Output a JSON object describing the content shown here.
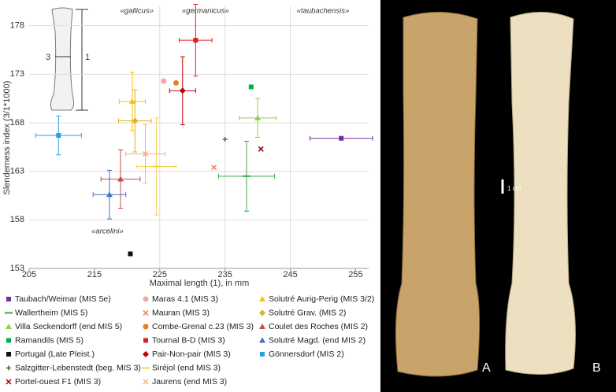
{
  "chart_data": {
    "type": "scatter",
    "xlabel": "Maximal length (1), in mm",
    "ylabel": "Slenderness  index (3/1*1000)",
    "xlim": [
      205,
      257
    ],
    "xticks": [
      205,
      215,
      225,
      235,
      245,
      255
    ],
    "ylim": [
      153,
      180
    ],
    "yticks": [
      153,
      158,
      163,
      168,
      173,
      178
    ],
    "grid": "y",
    "annotations": [
      {
        "text": "«gallicus»",
        "x": 221.5,
        "y": 179.5
      },
      {
        "text": "«germanicus»",
        "x": 232,
        "y": 179.5
      },
      {
        "text": "«taubachensis»",
        "x": 250,
        "y": 179.5
      },
      {
        "text": "«arcelini»",
        "x": 217,
        "y": 156.8
      }
    ],
    "region_lines": [
      225,
      235,
      245
    ],
    "inset_labels": [
      "3",
      "1"
    ],
    "series": [
      {
        "name": "Taubach/Weimar (MIS 5e)",
        "color": "#7030a0",
        "marker": "square",
        "x": [
          252.8
        ],
        "values": [
          166.4
        ],
        "xerr": [
          4.8
        ],
        "yerr": [
          null
        ]
      },
      {
        "name": "Wallertheim (MIS 5)",
        "color": "#3aa845",
        "marker": "dash",
        "x": [
          238.3
        ],
        "values": [
          162.5
        ],
        "xerr": [
          4.3
        ],
        "yerr": [
          3.6
        ]
      },
      {
        "name": "Villa Seckendorff (end MIS 5)",
        "color": "#92d050",
        "marker": "triangle",
        "x": [
          240
        ],
        "values": [
          168.5
        ],
        "xerr": [
          2.8
        ],
        "yerr": [
          2
        ]
      },
      {
        "name": "Ramandils (MIS 5)",
        "color": "#00b050",
        "marker": "square",
        "x": [
          239
        ],
        "values": [
          171.7
        ],
        "xerr": [
          null
        ],
        "yerr": [
          null
        ]
      },
      {
        "name": "Portugal (Late Pleist.)",
        "color": "#111111",
        "marker": "square",
        "x": [
          220.5
        ],
        "values": [
          154.5
        ],
        "xerr": [
          null
        ],
        "yerr": [
          null
        ]
      },
      {
        "name": "Salzgitter-Lebenstedt (beg. MIS 3)",
        "color": "#4f6228",
        "marker": "plus",
        "x": [
          235
        ],
        "values": [
          166.3
        ],
        "xerr": [
          null
        ],
        "yerr": [
          null
        ]
      },
      {
        "name": "Portel-ouest F1 (MIS 3)",
        "color": "#a00000",
        "marker": "cross",
        "x": [
          240.5
        ],
        "values": [
          165.3
        ],
        "xerr": [
          null
        ],
        "yerr": [
          null
        ]
      },
      {
        "name": "Maras 4.1 (MIS 3)",
        "color": "#f4a6a6",
        "marker": "circle",
        "x": [
          225.6
        ],
        "values": [
          172.3
        ],
        "xerr": [
          null
        ],
        "yerr": [
          null
        ]
      },
      {
        "name": "Mauran (MIS 3)",
        "color": "#f08050",
        "marker": "cross",
        "x": [
          233.3
        ],
        "values": [
          163.4
        ],
        "xerr": [
          null
        ],
        "yerr": [
          null
        ]
      },
      {
        "name": "Combe-Grenal c.23 (MIS 3)",
        "color": "#e67e22",
        "marker": "circle",
        "x": [
          227.5
        ],
        "values": [
          172.1
        ],
        "xerr": [
          null
        ],
        "yerr": [
          null
        ]
      },
      {
        "name": "Tournal B-D (MIS 3)",
        "color": "#e02020",
        "marker": "square",
        "x": [
          230.5
        ],
        "values": [
          176.5
        ],
        "xerr": [
          2.5
        ],
        "yerr": [
          3.7
        ]
      },
      {
        "name": "Pair-Non-pair (MIS 3)",
        "color": "#c00000",
        "marker": "diamond",
        "x": [
          228.5
        ],
        "values": [
          171.3
        ],
        "xerr": [
          2
        ],
        "yerr": [
          3.5
        ]
      },
      {
        "name": "Siréjol (end MIS 3)",
        "color": "#f5d34a",
        "marker": "dash",
        "x": [
          224.5
        ],
        "values": [
          163.5
        ],
        "xerr": [
          3
        ],
        "yerr": [
          5
        ]
      },
      {
        "name": "Jaurens (end MIS 3)",
        "color": "#f4b183",
        "marker": "cross",
        "x": [
          222.8
        ],
        "values": [
          164.8
        ],
        "xerr": [
          3
        ],
        "yerr": [
          3
        ]
      },
      {
        "name": "Solutré Aurig-Perig (MIS 3/2)",
        "color": "#ffc000",
        "marker": "triangle",
        "x": [
          220.8
        ],
        "values": [
          170.2
        ],
        "xerr": [
          2
        ],
        "yerr": [
          3
        ]
      },
      {
        "name": "Solutré Grav. (MIS 2)",
        "color": "#e0b020",
        "marker": "diamond",
        "x": [
          221.2
        ],
        "values": [
          168.2
        ],
        "xerr": [
          2.5
        ],
        "yerr": [
          3.2
        ]
      },
      {
        "name": "Coulet des Roches (MIS 2)",
        "color": "#c0504d",
        "marker": "triangle",
        "x": [
          219
        ],
        "values": [
          162.2
        ],
        "xerr": [
          3
        ],
        "yerr": [
          3
        ]
      },
      {
        "name": "Solutré Magd. (end MIS 2)",
        "color": "#4472c4",
        "marker": "triangle",
        "x": [
          217.3
        ],
        "values": [
          160.6
        ],
        "xerr": [
          2.5
        ],
        "yerr": [
          2.5
        ]
      },
      {
        "name": "Gönnersdorf (MIS 2)",
        "color": "#29a3dc",
        "marker": "square",
        "x": [
          209.5
        ],
        "values": [
          166.7
        ],
        "xerr": [
          3.5
        ],
        "yerr": [
          2
        ]
      }
    ]
  },
  "panels": {
    "scale": "1 cm",
    "labels": [
      "A",
      "B"
    ]
  }
}
